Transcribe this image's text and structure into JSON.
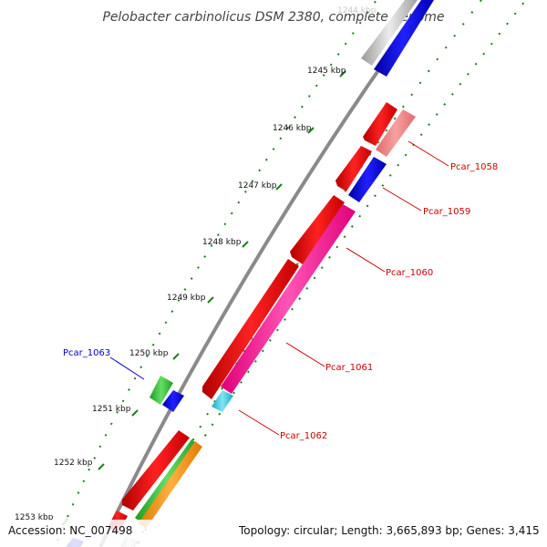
{
  "title": "Pelobacter carbinolicus DSM 2380, complete genome",
  "top_faded_label": "1244 kbp",
  "kbp_ticks": [
    "1245 kbp",
    "1246 kbp",
    "1247 kbp",
    "1248 kbp",
    "1249 kbp",
    "1250 kbp",
    "1251 kbp",
    "1252 kbp",
    "1253 kbp"
  ],
  "genes": [
    {
      "label": "Pcar_1058",
      "color": "#cc0000"
    },
    {
      "label": "Pcar_1059",
      "color": "#cc0000"
    },
    {
      "label": "Pcar_1060",
      "color": "#cc0000"
    },
    {
      "label": "Pcar_1061",
      "color": "#cc0000"
    },
    {
      "label": "Pcar_1062",
      "color": "#cc0000"
    },
    {
      "label": "Pcar_1063",
      "color": "#0000cc"
    }
  ],
  "footer": {
    "accession": "Accession: NC_007498",
    "summary": "Topology: circular; Length: 3,665,893 bp; Genes: 3,415"
  },
  "colors": {
    "backbone": "#8a8a8a",
    "tick_dots": "#1a7f1a",
    "red_feature": "#ee1111",
    "blue_feature": "#1111dd",
    "pink_feature": "#ff2a9c",
    "salmon_feature": "#f08080",
    "green_feature": "#33bb33",
    "orange_feature": "#ff9900",
    "cyan_feature": "#33ccdd",
    "gray_feature": "#bdbdbd"
  }
}
